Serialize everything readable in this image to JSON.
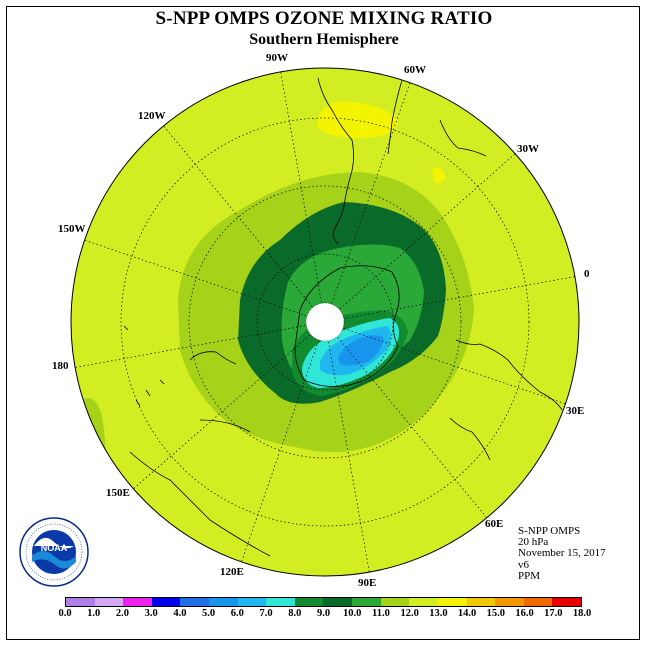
{
  "title": "S-NPP OMPS OZONE MIXING RATIO",
  "subtitle": "Southern Hemisphere",
  "longitude_labels": [
    "90W",
    "60W",
    "30W",
    "0",
    "30E",
    "60E",
    "90E",
    "120E",
    "150E",
    "180",
    "150W",
    "120W"
  ],
  "info": {
    "instrument": "S-NPP OMPS",
    "level": "20 hPa",
    "date": "November 15, 2017",
    "version": "v6",
    "units": "PPM"
  },
  "colorbar": {
    "ticks": [
      "0.0",
      "1.0",
      "2.0",
      "3.0",
      "4.0",
      "5.0",
      "6.0",
      "7.0",
      "8.0",
      "9.0",
      "10.0",
      "11.0",
      "12.0",
      "13.0",
      "14.0",
      "15.0",
      "16.0",
      "17.0",
      "18.0"
    ],
    "colors": [
      "#b07ee8",
      "#d4a8f2",
      "#ee22ee",
      "#0000ee",
      "#1f6fe8",
      "#1896ee",
      "#20b6f0",
      "#30e6d6",
      "#128a30",
      "#0a6a2a",
      "#2aa838",
      "#a6d21a",
      "#d2ee22",
      "#f4f400",
      "#f0c800",
      "#f09800",
      "#f06a00",
      "#e60000",
      "#7a5a3c"
    ]
  },
  "logo": {
    "text": "NOAA",
    "icon": "noaa-logo"
  }
}
